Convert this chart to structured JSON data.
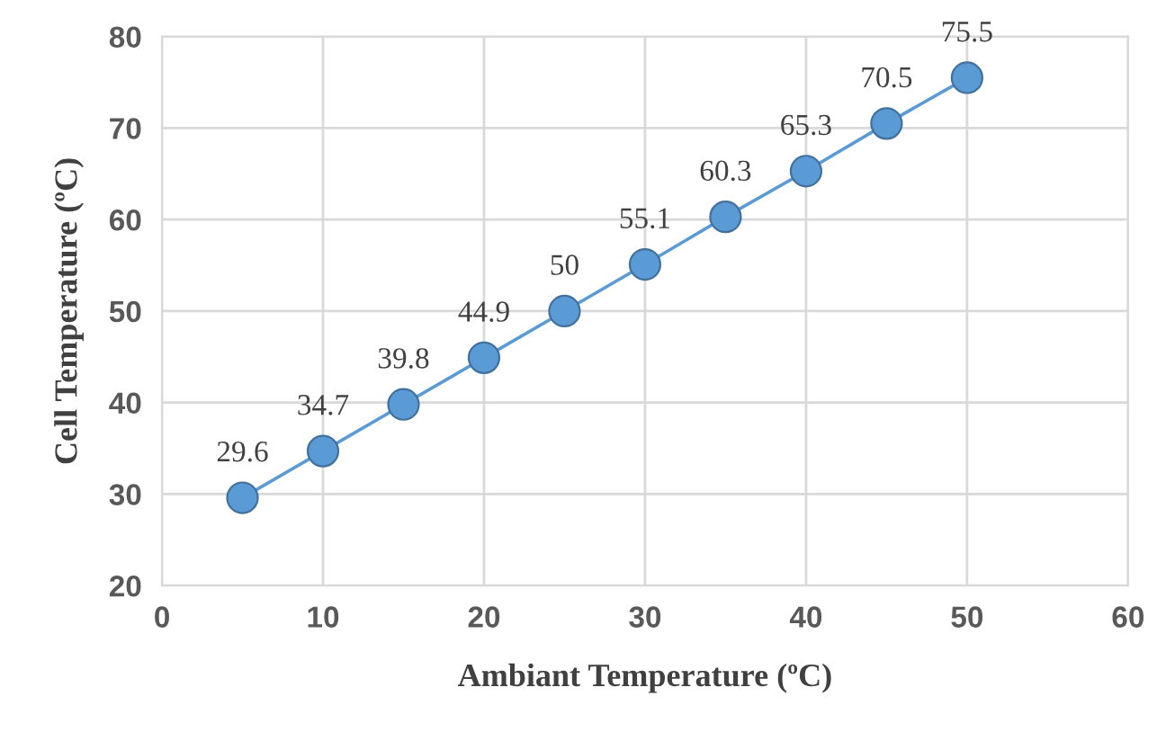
{
  "chart_data": {
    "type": "line",
    "xlabel": "Ambiant Temperature (ºC)",
    "ylabel": "Cell Temperature (ºC)",
    "x": [
      5,
      10,
      15,
      20,
      25,
      30,
      35,
      40,
      45,
      50
    ],
    "series": [
      {
        "color": "#5b9bd5",
        "values": [
          29.6,
          34.7,
          39.8,
          44.9,
          50,
          55.1,
          60.3,
          65.3,
          70.5,
          75.5
        ]
      }
    ],
    "xlim": [
      0,
      60
    ],
    "xticks": [
      0,
      10,
      20,
      30,
      40,
      50,
      60
    ],
    "ylim": [
      20,
      80
    ],
    "yticks": [
      20,
      30,
      40,
      50,
      60,
      70,
      80
    ],
    "grid": true,
    "marker": "circle",
    "line_style": "solid",
    "data_labels": true
  }
}
